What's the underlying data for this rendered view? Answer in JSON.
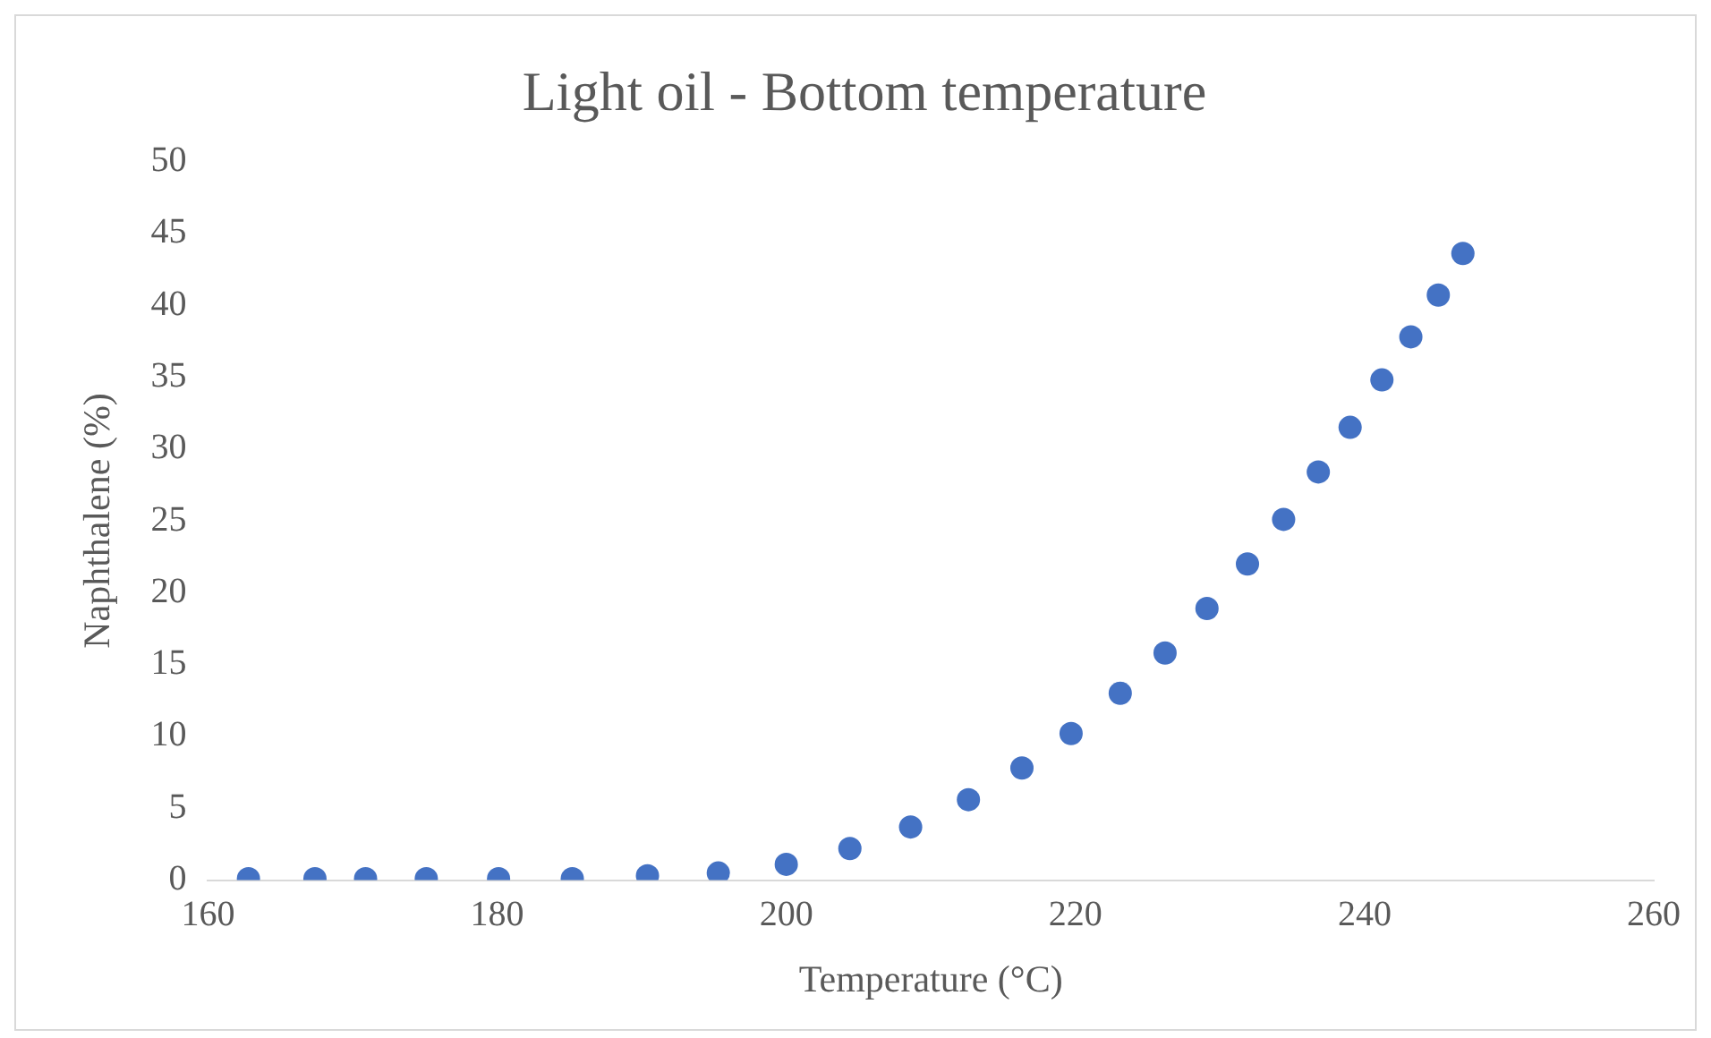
{
  "chart_data": {
    "type": "scatter",
    "title": "Light oil - Bottom temperature",
    "xlabel": "Temperature (°C)",
    "ylabel": "Naphthalene (%)",
    "x": [
      162.8,
      167.4,
      170.9,
      175.1,
      180.1,
      185.2,
      190.4,
      195.3,
      200.0,
      204.4,
      208.6,
      212.6,
      216.3,
      219.7,
      223.1,
      226.2,
      229.1,
      231.9,
      234.4,
      236.8,
      239.0,
      241.2,
      243.2,
      245.1,
      246.8
    ],
    "series": [
      {
        "color": "#4472c4",
        "values": [
          0.1,
          0.1,
          0.1,
          0.1,
          0.1,
          0.1,
          0.3,
          0.5,
          1.1,
          2.2,
          3.7,
          5.6,
          7.8,
          10.2,
          13.0,
          15.8,
          18.9,
          22.0,
          25.1,
          28.4,
          31.5,
          34.8,
          37.8,
          40.7,
          43.6
        ]
      }
    ],
    "xlim": [
      160,
      260
    ],
    "xticks": [
      160,
      180,
      200,
      220,
      240,
      260
    ],
    "ylim": [
      0,
      50
    ],
    "yticks": [
      0,
      5,
      10,
      15,
      20,
      25,
      30,
      35,
      40,
      45,
      50
    ],
    "grid": false,
    "legend": false,
    "marker": "circle"
  }
}
